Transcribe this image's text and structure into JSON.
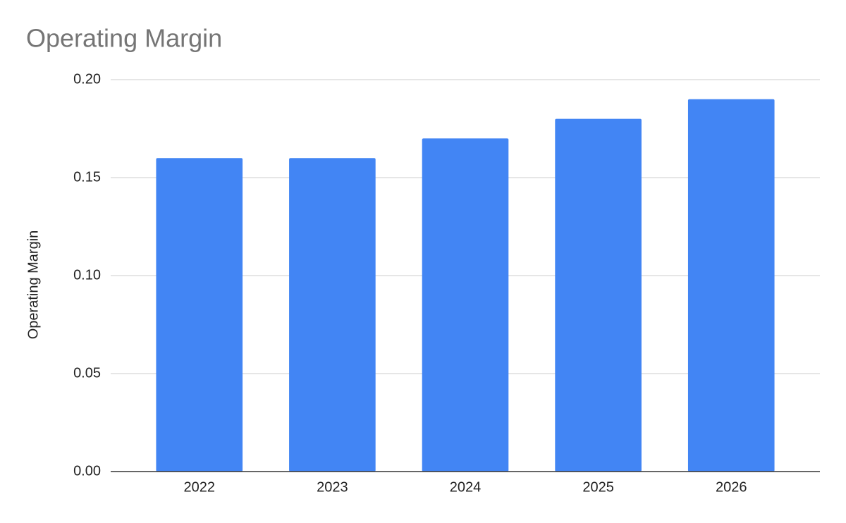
{
  "chart_data": {
    "type": "bar",
    "title": "Operating Margin",
    "y_label": "Operating Margin",
    "categories": [
      "2022",
      "2023",
      "2024",
      "2025",
      "2026"
    ],
    "values": [
      0.16,
      0.16,
      0.17,
      0.18,
      0.19
    ],
    "color": "#4285f4",
    "ylim": [
      0,
      0.2
    ],
    "yticks": [
      {
        "value": 0,
        "label": "0.00"
      },
      0.05,
      {
        "value": 0.1,
        "label": "0.10"
      },
      0.15,
      {
        "value": 0.2,
        "label": "0.20"
      }
    ],
    "grid": true
  }
}
